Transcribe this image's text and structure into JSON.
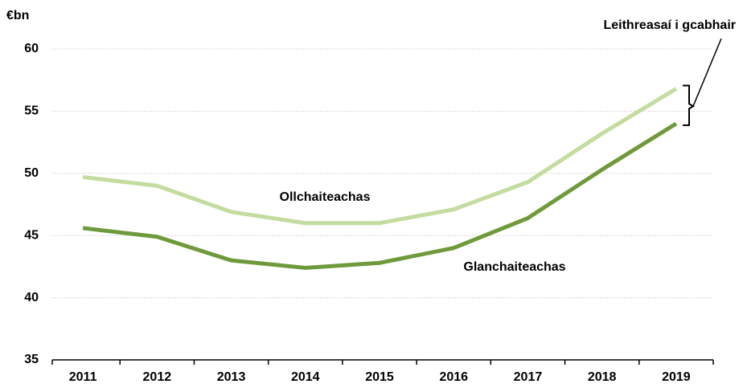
{
  "chart_data": {
    "type": "line",
    "y_unit_label": "€bn",
    "annotation": "Leithreasaí i gcabhair",
    "categories": [
      "2011",
      "2012",
      "2013",
      "2014",
      "2015",
      "2016",
      "2017",
      "2018",
      "2019"
    ],
    "series": [
      {
        "name": "Ollchaiteachas",
        "color": "#c4dca0",
        "values": [
          49.7,
          49.0,
          46.9,
          46.0,
          46.0,
          47.1,
          49.3,
          53.2,
          56.8
        ]
      },
      {
        "name": "Glanchaiteachas",
        "color": "#6f9a3b",
        "values": [
          45.6,
          44.9,
          43.0,
          42.4,
          42.8,
          44.0,
          46.4,
          50.3,
          54.0
        ]
      }
    ],
    "ylim": [
      35,
      60
    ],
    "yticks": [
      35,
      40,
      45,
      50,
      55,
      60
    ],
    "grid": true
  }
}
